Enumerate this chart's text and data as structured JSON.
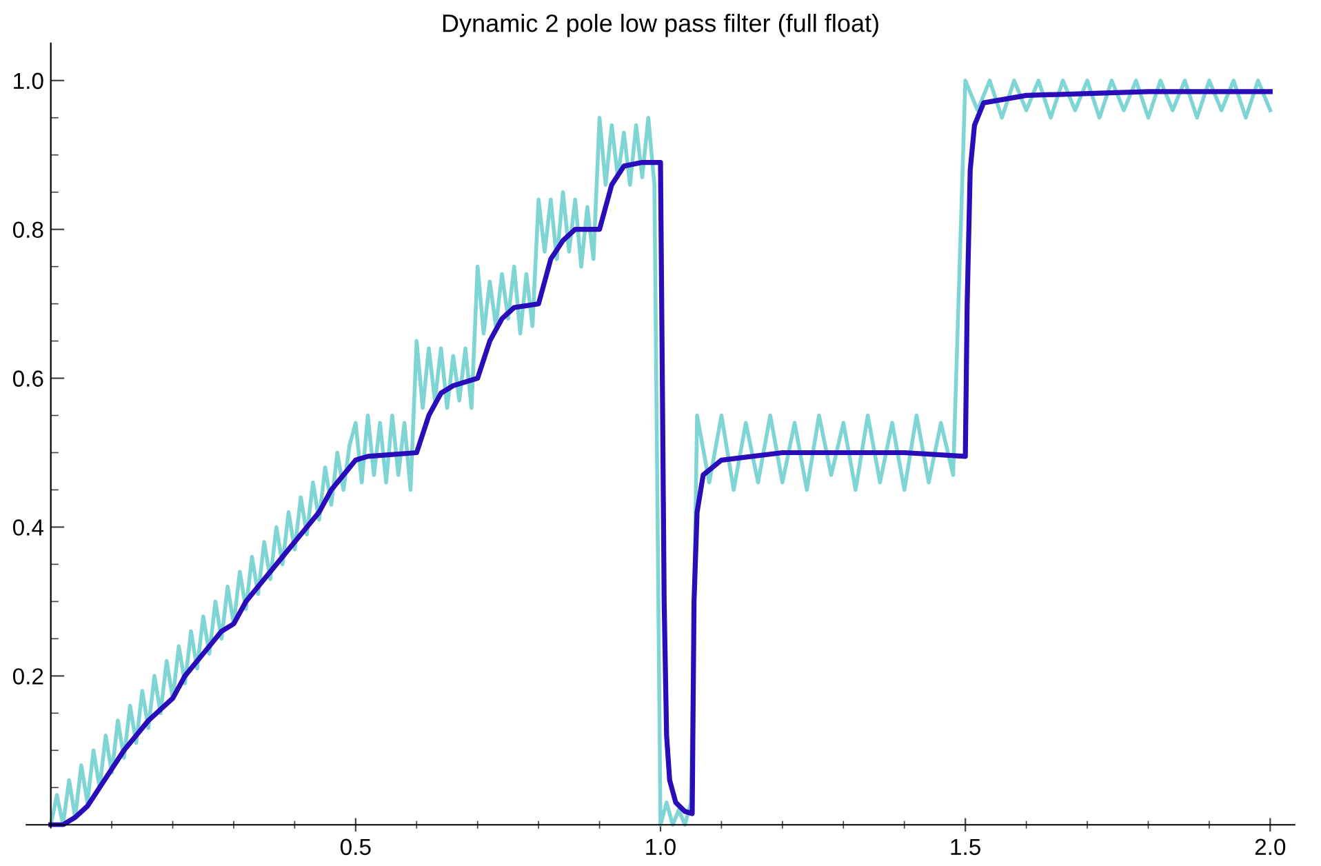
{
  "chart_data": {
    "type": "line",
    "title": "Dynamic 2 pole low pass filter (full float)",
    "xlim": [
      -0.04,
      2.04
    ],
    "ylim": [
      -0.003,
      1.05
    ],
    "xticks": [
      {
        "value": 0,
        "label": null
      },
      {
        "value": 0.1,
        "label": null
      },
      {
        "value": 0.2,
        "label": null
      },
      {
        "value": 0.3,
        "label": null
      },
      {
        "value": 0.4,
        "label": null
      },
      0.5,
      {
        "value": 0.6,
        "label": null
      },
      {
        "value": 0.7,
        "label": null
      },
      {
        "value": 0.8,
        "label": null
      },
      {
        "value": 0.9,
        "label": null
      },
      {
        "value": 1.0,
        "label": "1.0"
      },
      {
        "value": 1.1,
        "label": null
      },
      {
        "value": 1.2,
        "label": null
      },
      {
        "value": 1.3,
        "label": null
      },
      {
        "value": 1.4,
        "label": null
      },
      1.5,
      {
        "value": 1.6,
        "label": null
      },
      {
        "value": 1.7,
        "label": null
      },
      {
        "value": 1.8,
        "label": null
      },
      {
        "value": 1.9,
        "label": null
      },
      {
        "value": 2.0,
        "label": "2.0"
      }
    ],
    "yticks": [
      {
        "value": 0.05,
        "label": null
      },
      {
        "value": 0.1,
        "label": null
      },
      {
        "value": 0.15,
        "label": null
      },
      0.2,
      {
        "value": 0.25,
        "label": null
      },
      {
        "value": 0.3,
        "label": null
      },
      {
        "value": 0.35,
        "label": null
      },
      0.4,
      {
        "value": 0.45,
        "label": null
      },
      {
        "value": 0.5,
        "label": null
      },
      {
        "value": 0.55,
        "label": null
      },
      0.6,
      {
        "value": 0.65,
        "label": null
      },
      {
        "value": 0.7,
        "label": null
      },
      {
        "value": 0.75,
        "label": null
      },
      0.8,
      {
        "value": 0.85,
        "label": null
      },
      {
        "value": 0.9,
        "label": null
      },
      {
        "value": 0.95,
        "label": null
      },
      {
        "value": 1.0,
        "label": "1.0"
      }
    ],
    "grid": false,
    "legend": false,
    "marker": "none",
    "line_style": "solid",
    "series": [
      {
        "color": "#7fd4d4",
        "x": [
          0,
          0.01,
          0.02,
          0.03,
          0.04,
          0.05,
          0.06,
          0.07,
          0.08,
          0.09,
          0.1,
          0.11,
          0.12,
          0.13,
          0.14,
          0.15,
          0.16,
          0.17,
          0.18,
          0.19,
          0.2,
          0.21,
          0.22,
          0.23,
          0.24,
          0.25,
          0.26,
          0.27,
          0.28,
          0.29,
          0.3,
          0.31,
          0.32,
          0.33,
          0.34,
          0.35,
          0.36,
          0.37,
          0.38,
          0.39,
          0.4,
          0.41,
          0.42,
          0.43,
          0.44,
          0.45,
          0.46,
          0.47,
          0.48,
          0.49,
          0.5,
          0.51,
          0.52,
          0.53,
          0.54,
          0.55,
          0.56,
          0.57,
          0.58,
          0.59,
          0.6,
          0.61,
          0.62,
          0.63,
          0.64,
          0.65,
          0.66,
          0.67,
          0.68,
          0.69,
          0.7,
          0.71,
          0.72,
          0.73,
          0.74,
          0.75,
          0.76,
          0.77,
          0.78,
          0.79,
          0.8,
          0.81,
          0.82,
          0.83,
          0.84,
          0.85,
          0.86,
          0.87,
          0.88,
          0.89,
          0.9,
          0.91,
          0.92,
          0.93,
          0.94,
          0.95,
          0.96,
          0.97,
          0.98,
          0.99,
          1.0,
          1.01,
          1.02,
          1.03,
          1.04,
          1.05,
          1.06,
          1.08,
          1.1,
          1.12,
          1.14,
          1.16,
          1.18,
          1.2,
          1.22,
          1.24,
          1.26,
          1.28,
          1.3,
          1.32,
          1.34,
          1.36,
          1.38,
          1.4,
          1.42,
          1.44,
          1.46,
          1.48,
          1.5,
          1.52,
          1.54,
          1.56,
          1.58,
          1.6,
          1.62,
          1.64,
          1.66,
          1.68,
          1.7,
          1.72,
          1.74,
          1.76,
          1.78,
          1.8,
          1.82,
          1.84,
          1.86,
          1.88,
          1.9,
          1.92,
          1.94,
          1.96,
          1.98,
          2.0
        ],
        "values": [
          0.0,
          0.04,
          0.0,
          0.06,
          0.01,
          0.08,
          0.03,
          0.1,
          0.05,
          0.12,
          0.07,
          0.14,
          0.09,
          0.16,
          0.11,
          0.18,
          0.13,
          0.2,
          0.15,
          0.22,
          0.17,
          0.24,
          0.19,
          0.26,
          0.21,
          0.28,
          0.23,
          0.3,
          0.25,
          0.32,
          0.27,
          0.34,
          0.29,
          0.36,
          0.31,
          0.38,
          0.33,
          0.4,
          0.35,
          0.42,
          0.37,
          0.44,
          0.39,
          0.46,
          0.41,
          0.48,
          0.43,
          0.5,
          0.45,
          0.51,
          0.54,
          0.46,
          0.55,
          0.47,
          0.54,
          0.46,
          0.55,
          0.47,
          0.54,
          0.45,
          0.65,
          0.56,
          0.64,
          0.57,
          0.64,
          0.56,
          0.63,
          0.57,
          0.64,
          0.56,
          0.75,
          0.66,
          0.73,
          0.67,
          0.74,
          0.68,
          0.75,
          0.66,
          0.74,
          0.67,
          0.84,
          0.77,
          0.84,
          0.76,
          0.85,
          0.77,
          0.84,
          0.75,
          0.83,
          0.76,
          0.95,
          0.86,
          0.94,
          0.87,
          0.93,
          0.86,
          0.94,
          0.87,
          0.95,
          0.86,
          0.0,
          0.03,
          0.0,
          0.02,
          0.0,
          0.03,
          0.55,
          0.46,
          0.55,
          0.45,
          0.54,
          0.46,
          0.55,
          0.46,
          0.54,
          0.45,
          0.55,
          0.47,
          0.54,
          0.45,
          0.55,
          0.46,
          0.54,
          0.45,
          0.55,
          0.46,
          0.54,
          0.47,
          1.0,
          0.96,
          1.0,
          0.95,
          1.0,
          0.96,
          1.0,
          0.95,
          1.0,
          0.96,
          1.0,
          0.95,
          1.0,
          0.96,
          1.0,
          0.95,
          1.0,
          0.96,
          1.0,
          0.95,
          1.0,
          0.96,
          1.0,
          0.95,
          1.0,
          0.96
        ]
      },
      {
        "color": "#2a0cb8",
        "x": [
          0,
          0.02,
          0.04,
          0.06,
          0.08,
          0.1,
          0.12,
          0.14,
          0.16,
          0.18,
          0.2,
          0.22,
          0.24,
          0.26,
          0.28,
          0.3,
          0.32,
          0.34,
          0.36,
          0.38,
          0.4,
          0.42,
          0.44,
          0.46,
          0.48,
          0.5,
          0.52,
          0.6,
          0.62,
          0.64,
          0.66,
          0.7,
          0.72,
          0.74,
          0.76,
          0.8,
          0.82,
          0.84,
          0.86,
          0.9,
          0.92,
          0.94,
          0.97,
          1.0,
          1.003,
          1.006,
          1.01,
          1.015,
          1.025,
          1.04,
          1.052,
          1.055,
          1.06,
          1.07,
          1.1,
          1.2,
          1.3,
          1.4,
          1.5,
          1.503,
          1.508,
          1.515,
          1.53,
          1.6,
          1.8,
          2.0
        ],
        "values": [
          0,
          0.0,
          0.01,
          0.025,
          0.05,
          0.075,
          0.1,
          0.12,
          0.14,
          0.155,
          0.17,
          0.2,
          0.22,
          0.24,
          0.26,
          0.27,
          0.3,
          0.32,
          0.34,
          0.36,
          0.38,
          0.4,
          0.42,
          0.45,
          0.47,
          0.49,
          0.495,
          0.5,
          0.55,
          0.58,
          0.59,
          0.6,
          0.65,
          0.68,
          0.695,
          0.7,
          0.76,
          0.785,
          0.8,
          0.8,
          0.86,
          0.885,
          0.89,
          0.89,
          0.6,
          0.3,
          0.12,
          0.06,
          0.03,
          0.018,
          0.015,
          0.3,
          0.42,
          0.47,
          0.49,
          0.5,
          0.5,
          0.5,
          0.495,
          0.7,
          0.88,
          0.94,
          0.97,
          0.98,
          0.985,
          0.985
        ]
      }
    ]
  }
}
